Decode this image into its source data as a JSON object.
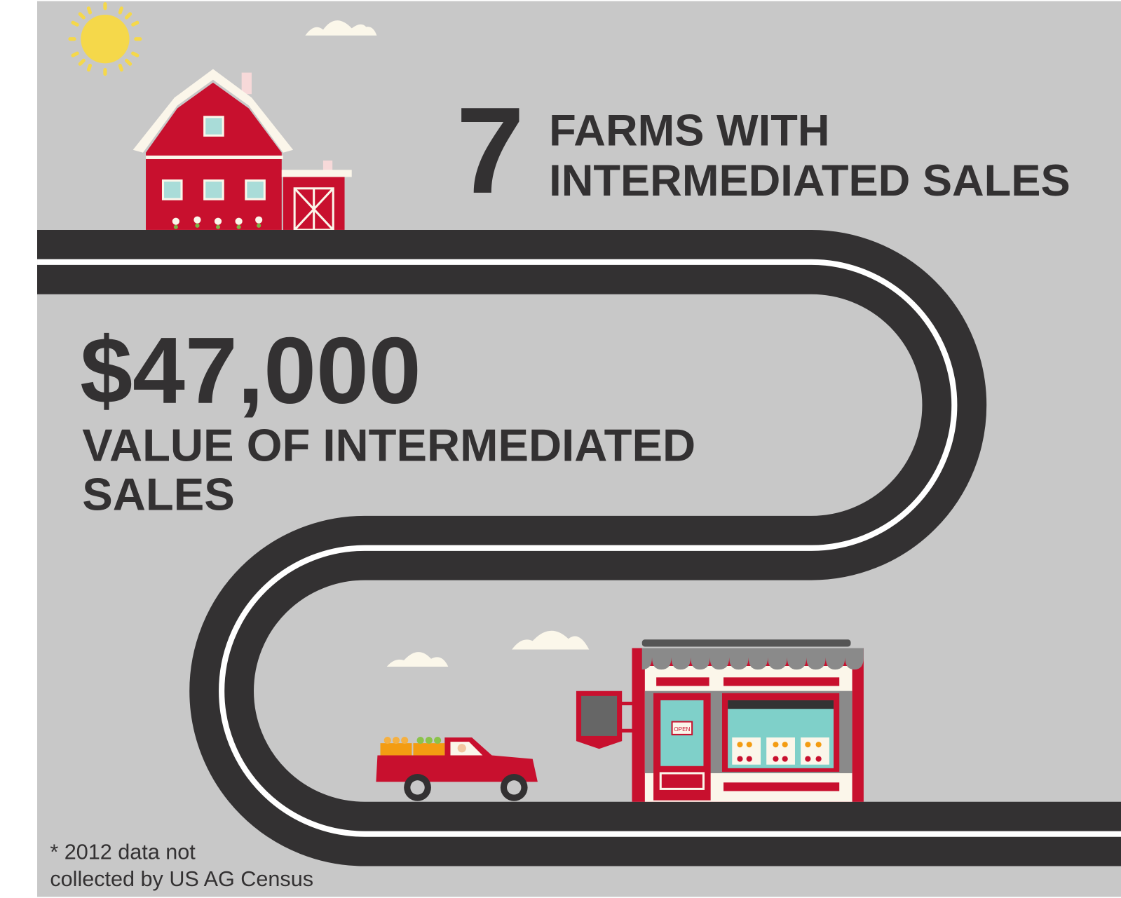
{
  "headline": {
    "number": "7",
    "lines": [
      "FARMS WITH",
      "INTERMEDIATED SALES"
    ]
  },
  "value": {
    "amount": "$47,000",
    "lines": [
      "VALUE OF INTERMEDIATED",
      "SALES"
    ]
  },
  "store": {
    "sign": "OPEN"
  },
  "footnote": {
    "lines": [
      "* 2012 data not",
      "collected by US AG Census"
    ]
  }
}
